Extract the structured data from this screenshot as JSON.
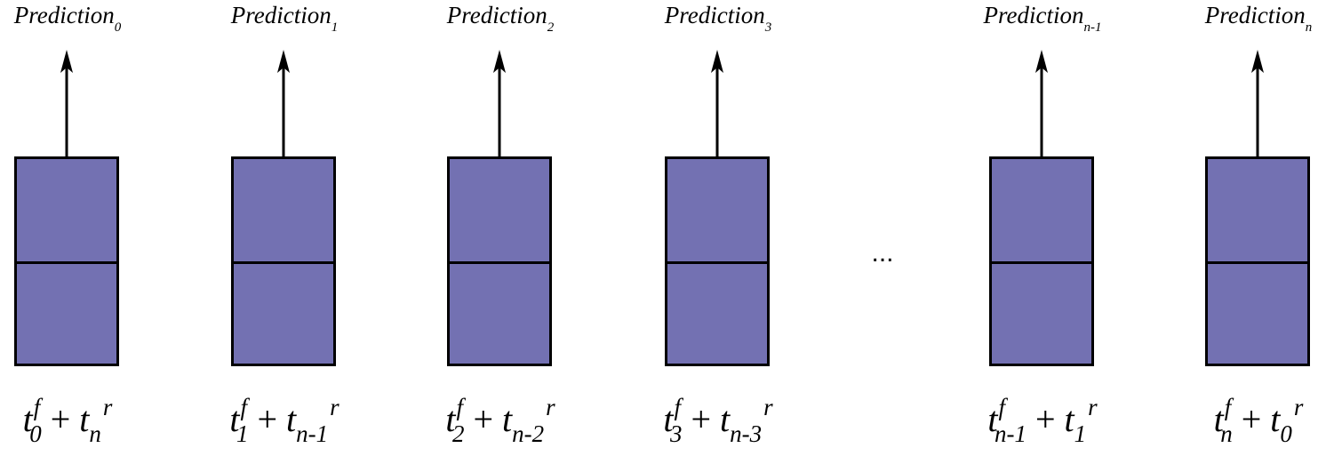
{
  "columns": [
    {
      "prediction": {
        "base": "Prediction",
        "sub": "0"
      },
      "formula": {
        "f_sub": "0",
        "r_sub": "n",
        "f_sup": "f",
        "r_sup": "r"
      }
    },
    {
      "prediction": {
        "base": "Prediction",
        "sub": "1"
      },
      "formula": {
        "f_sub": "1",
        "r_sub": "n-1",
        "f_sup": "f",
        "r_sup": "r"
      }
    },
    {
      "prediction": {
        "base": "Prediction",
        "sub": "2"
      },
      "formula": {
        "f_sub": "2",
        "r_sub": "n-2",
        "f_sup": "f",
        "r_sup": "r"
      }
    },
    {
      "prediction": {
        "base": "Prediction",
        "sub": "3"
      },
      "formula": {
        "f_sub": "3",
        "r_sub": "n-3",
        "f_sup": "f",
        "r_sup": "r"
      }
    },
    {
      "prediction": {
        "base": "Prediction",
        "sub": "n-1"
      },
      "formula": {
        "f_sub": "n-1",
        "r_sub": "1",
        "f_sup": "f",
        "r_sup": "r"
      }
    },
    {
      "prediction": {
        "base": "Prediction",
        "sub": "n"
      },
      "formula": {
        "f_sub": "n",
        "r_sub": "0",
        "f_sup": "f",
        "r_sup": "r"
      }
    }
  ],
  "ellipsis": "...",
  "formula_symbols": {
    "t": "t",
    "plus": "+"
  },
  "colors": {
    "box_fill": "#7371b2",
    "stroke": "#000000"
  }
}
